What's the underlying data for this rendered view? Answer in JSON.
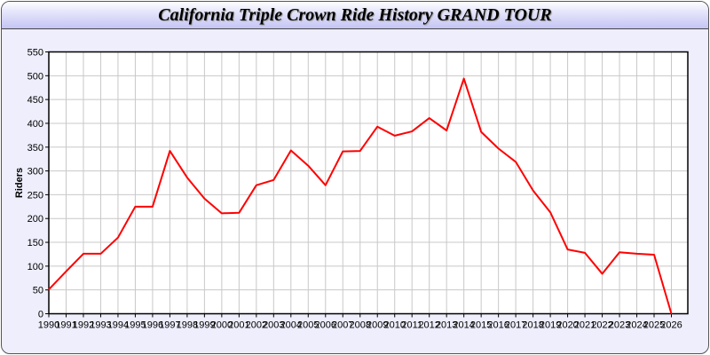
{
  "chart_data": {
    "type": "line",
    "title": "California Triple Crown Ride History GRAND TOUR",
    "xlabel": "",
    "ylabel": "Riders",
    "xlim": [
      1990,
      2027
    ],
    "ylim": [
      0,
      550
    ],
    "yticks": [
      0,
      50,
      100,
      150,
      200,
      250,
      300,
      350,
      400,
      450,
      500,
      550
    ],
    "grid": true,
    "x": [
      1990,
      1991,
      1992,
      1993,
      1994,
      1995,
      1996,
      1997,
      1998,
      1999,
      2000,
      2001,
      2002,
      2003,
      2004,
      2005,
      2006,
      2007,
      2008,
      2009,
      2010,
      2011,
      2012,
      2013,
      2014,
      2015,
      2016,
      2017,
      2018,
      2019,
      2020,
      2021,
      2022,
      2023,
      2024,
      2025,
      2026
    ],
    "series": [
      {
        "values": [
          51,
          89,
          126,
          126,
          160,
          225,
          225,
          342,
          286,
          242,
          211,
          212,
          270,
          281,
          343,
          311,
          270,
          341,
          342,
          393,
          374,
          383,
          411,
          385,
          494,
          382,
          347,
          319,
          259,
          213,
          135,
          128,
          84,
          129,
          126,
          124,
          0
        ],
        "color": "#ff0000"
      }
    ]
  }
}
